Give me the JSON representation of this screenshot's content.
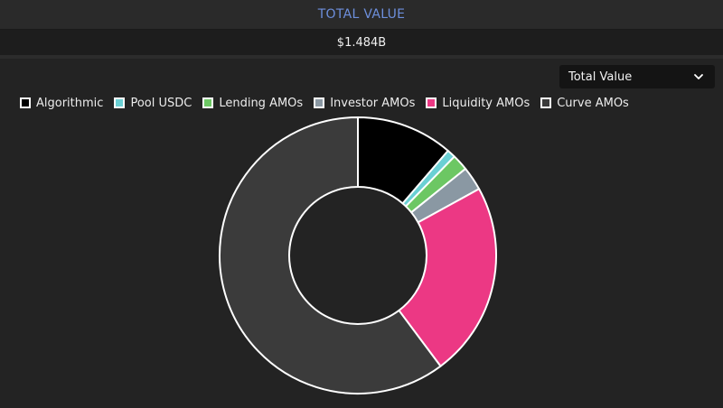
{
  "header": {
    "title": "TOTAL VALUE"
  },
  "summary": {
    "value": "$1.484B"
  },
  "selector": {
    "selected": "Total Value",
    "icon": "chevron-down-icon"
  },
  "colors": {
    "border": "#ffffff",
    "header_text": "#6d8fdc"
  },
  "chart_data": {
    "type": "pie",
    "donut": true,
    "legend_position": "top-left",
    "categories": [
      "Algorithmic",
      "Pool USDC",
      "Lending AMOs",
      "Investor AMOs",
      "Liquidity AMOs",
      "Curve AMOs"
    ],
    "values": [
      11.3,
      1.0,
      1.9,
      2.8,
      22.8,
      60.2
    ],
    "unit": "percent of total",
    "colors": [
      "#000000",
      "#6ad0d4",
      "#6cc763",
      "#8a98a3",
      "#ec3884",
      "#3b3b3b"
    ]
  }
}
